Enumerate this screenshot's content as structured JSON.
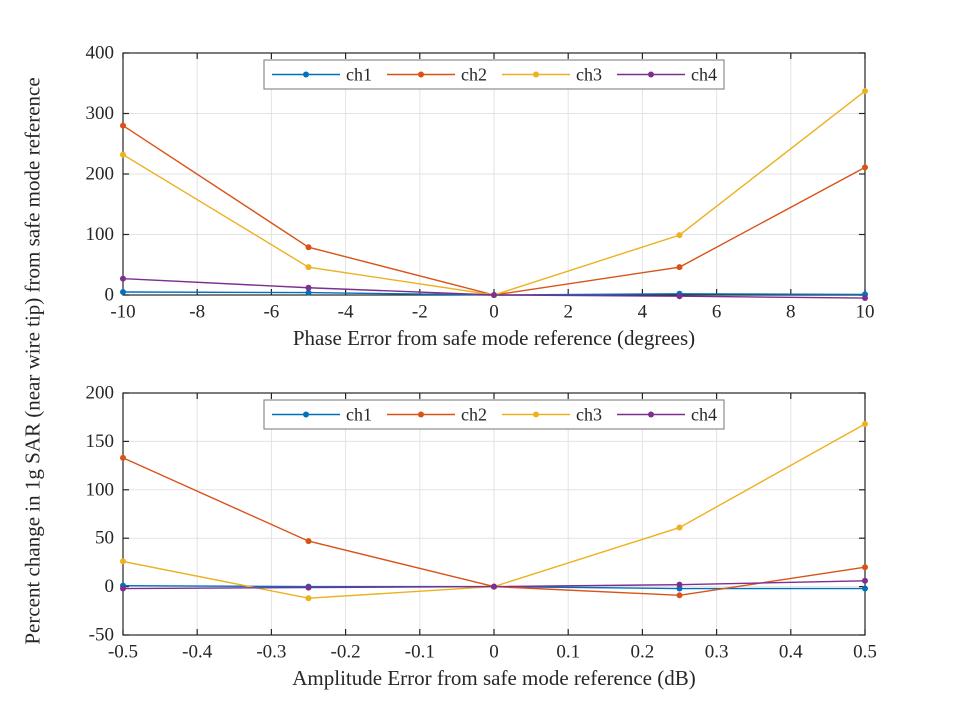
{
  "figure": {
    "ylabel": "Percent change in 1g SAR (near wire tip) from safe mode reference"
  },
  "colors": {
    "axis": "#262626",
    "text": "#262626",
    "grid": "#e3e3e3",
    "background": "#ffffff",
    "legend_border": "#8c8c8c",
    "ch1": "#0072BD",
    "ch2": "#D95319",
    "ch3": "#EDB120",
    "ch4": "#7E2F8E"
  },
  "chart_data": [
    {
      "type": "line",
      "title": "",
      "xlabel": "Phase Error from safe mode reference (degrees)",
      "x": [
        -10,
        -5,
        0,
        5,
        10
      ],
      "xlim": [
        -10,
        10
      ],
      "ylim": [
        0,
        400
      ],
      "xticks": [
        -10,
        -8,
        -6,
        -4,
        -2,
        0,
        2,
        4,
        6,
        8,
        10
      ],
      "yticks": [
        0,
        100,
        200,
        300,
        400
      ],
      "grid": true,
      "legend_position": "north-inside",
      "legend": [
        "ch1",
        "ch2",
        "ch3",
        "ch4"
      ],
      "series": [
        {
          "name": "ch1",
          "color": "#0072BD",
          "values": [
            5,
            4,
            0,
            2,
            1
          ]
        },
        {
          "name": "ch2",
          "color": "#D95319",
          "values": [
            280,
            79,
            0,
            46,
            211
          ]
        },
        {
          "name": "ch3",
          "color": "#EDB120",
          "values": [
            232,
            46,
            0,
            99,
            337
          ]
        },
        {
          "name": "ch4",
          "color": "#7E2F8E",
          "values": [
            27,
            12,
            0,
            -2,
            -5
          ]
        }
      ]
    },
    {
      "type": "line",
      "title": "",
      "xlabel": "Amplitude Error from safe mode reference (dB)",
      "x": [
        -0.5,
        -0.25,
        0,
        0.25,
        0.5
      ],
      "xlim": [
        -0.5,
        0.5
      ],
      "ylim": [
        -50,
        200
      ],
      "xticks": [
        -0.5,
        -0.4,
        -0.3,
        -0.2,
        -0.1,
        0,
        0.1,
        0.2,
        0.3,
        0.4,
        0.5
      ],
      "yticks": [
        -50,
        0,
        50,
        100,
        150,
        200
      ],
      "grid": true,
      "legend_position": "north-inside",
      "legend": [
        "ch1",
        "ch2",
        "ch3",
        "ch4"
      ],
      "series": [
        {
          "name": "ch1",
          "color": "#0072BD",
          "values": [
            1,
            0,
            0,
            -2,
            -2
          ]
        },
        {
          "name": "ch2",
          "color": "#D95319",
          "values": [
            133,
            47,
            0,
            -9,
            20
          ]
        },
        {
          "name": "ch3",
          "color": "#EDB120",
          "values": [
            26,
            -12,
            0,
            61,
            168
          ]
        },
        {
          "name": "ch4",
          "color": "#7E2F8E",
          "values": [
            -2,
            -1,
            0,
            2,
            6
          ]
        }
      ]
    }
  ]
}
